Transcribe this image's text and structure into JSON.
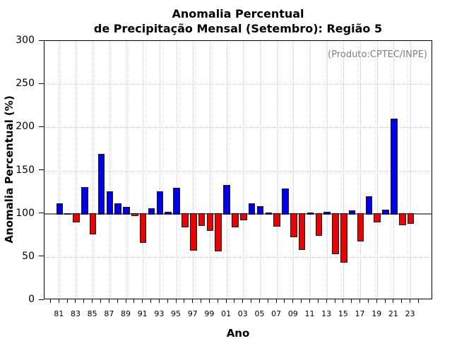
{
  "chart_data": {
    "type": "bar",
    "title_line1": "Anomalia Percentual",
    "title_line2": "de Precipitação Mensal (Setembro): Região 5",
    "annotation": "(Produto:CPTEC/INPE)",
    "xlabel": "Ano",
    "ylabel": "Anomalia Percentual (%)",
    "ylim": [
      0,
      300
    ],
    "baseline_value": 100,
    "y_tick_values": [
      0,
      50,
      100,
      150,
      200,
      250,
      300
    ],
    "gridline_values": [
      50,
      150,
      200,
      250
    ],
    "x_labeled_every": 2,
    "grid": "dotted",
    "legend": "none",
    "years": [
      "81",
      "82",
      "83",
      "84",
      "85",
      "86",
      "87",
      "88",
      "89",
      "90",
      "91",
      "92",
      "93",
      "94",
      "95",
      "96",
      "97",
      "98",
      "99",
      "00",
      "01",
      "02",
      "03",
      "04",
      "05",
      "06",
      "07",
      "08",
      "09",
      "10",
      "11",
      "12",
      "13",
      "14",
      "15",
      "16",
      "17",
      "18",
      "19",
      "20",
      "21",
      "22",
      "23"
    ],
    "values": [
      112,
      100,
      90,
      131,
      76,
      169,
      126,
      112,
      108,
      97,
      66,
      106,
      126,
      102,
      130,
      84,
      57,
      86,
      80,
      56,
      133,
      84,
      92,
      112,
      109,
      101,
      85,
      129,
      73,
      58,
      101,
      74,
      102,
      53,
      43,
      104,
      68,
      120,
      90,
      105,
      210,
      87,
      88
    ],
    "colors": {
      "above_baseline": "#0000EE",
      "below_baseline": "#EE0000",
      "baseline_line": "#787878",
      "grid": "#c9c9c9",
      "annotation_text": "#808080",
      "bar_outline": "#1a1a1a"
    }
  }
}
